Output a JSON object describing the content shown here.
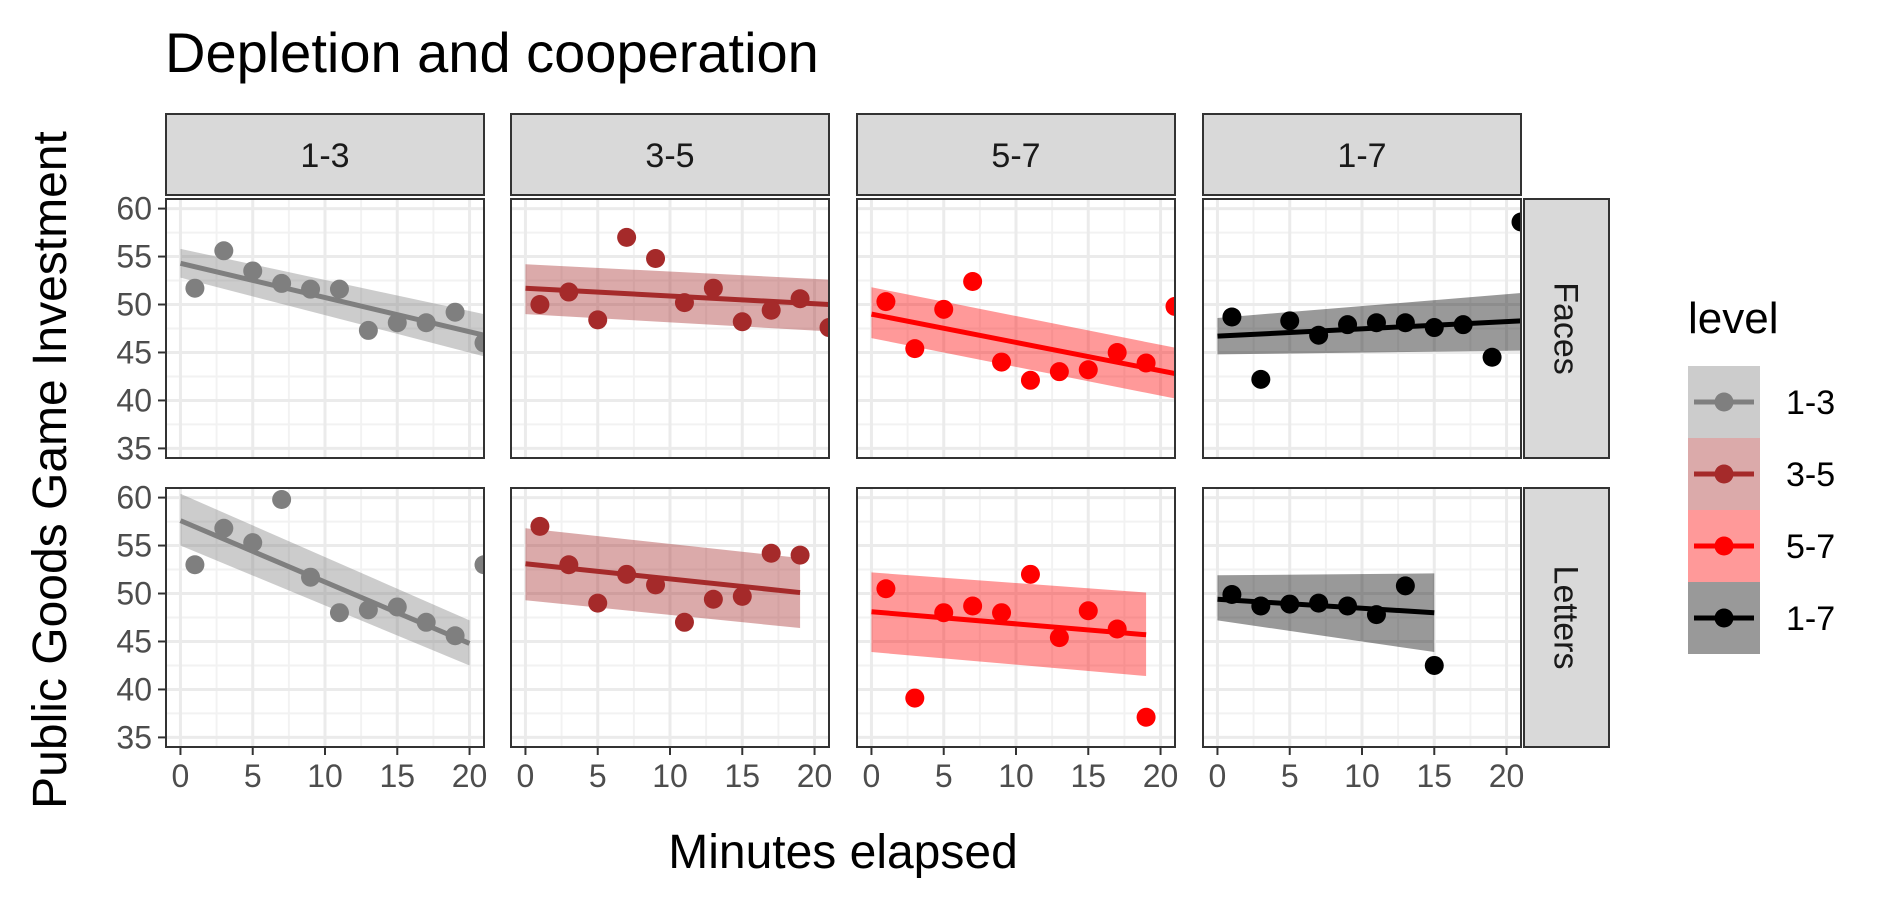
{
  "chart_data": {
    "type": "scatter",
    "title": "Depletion and cooperation",
    "xlabel": "Minutes elapsed",
    "ylabel": "Public Goods Game Investment",
    "xlim": [
      -1,
      21
    ],
    "ylim": [
      34,
      61
    ],
    "x_ticks": [
      0,
      5,
      10,
      15,
      20
    ],
    "y_ticks": [
      35,
      40,
      45,
      50,
      55,
      60
    ],
    "columns": [
      "1-3",
      "3-5",
      "5-7",
      "1-7"
    ],
    "rows": [
      "Faces",
      "Letters"
    ],
    "grid": true,
    "legend": {
      "title": "level",
      "position": "right",
      "entries": [
        {
          "label": "1-3",
          "color": "#7f7f7f"
        },
        {
          "label": "3-5",
          "color": "#a52a2a"
        },
        {
          "label": "5-7",
          "color": "#ff0000"
        },
        {
          "label": "1-7",
          "color": "#000000"
        }
      ]
    },
    "panels": [
      {
        "row": "Faces",
        "column": "1-3",
        "color": "#7f7f7f",
        "points": [
          [
            1,
            51.7
          ],
          [
            3,
            55.6
          ],
          [
            5,
            53.5
          ],
          [
            7,
            52.2
          ],
          [
            9,
            51.6
          ],
          [
            11,
            51.6
          ],
          [
            13,
            47.3
          ],
          [
            15,
            48.1
          ],
          [
            17,
            48.1
          ],
          [
            19,
            49.2
          ],
          [
            21,
            46.0
          ]
        ],
        "fit": {
          "x": [
            0,
            21
          ],
          "y": [
            54.3,
            46.8
          ],
          "band_start": [
            52.8,
            55.8
          ],
          "band_end": [
            44.6,
            49.0
          ]
        }
      },
      {
        "row": "Faces",
        "column": "3-5",
        "color": "#a52a2a",
        "points": [
          [
            1,
            50.0
          ],
          [
            3,
            51.3
          ],
          [
            5,
            48.4
          ],
          [
            7,
            57.0
          ],
          [
            9,
            54.8
          ],
          [
            11,
            50.2
          ],
          [
            13,
            51.7
          ],
          [
            15,
            48.2
          ],
          [
            17,
            49.4
          ],
          [
            19,
            50.6
          ],
          [
            21,
            47.6
          ]
        ],
        "fit": {
          "x": [
            0,
            21
          ],
          "y": [
            51.7,
            50.0
          ],
          "band_start": [
            49.0,
            54.2
          ],
          "band_end": [
            47.2,
            52.6
          ]
        }
      },
      {
        "row": "Faces",
        "column": "5-7",
        "color": "#ff0000",
        "points": [
          [
            1,
            50.3
          ],
          [
            3,
            45.4
          ],
          [
            5,
            49.5
          ],
          [
            7,
            52.4
          ],
          [
            9,
            44.0
          ],
          [
            11,
            42.1
          ],
          [
            13,
            43.0
          ],
          [
            15,
            43.2
          ],
          [
            17,
            45.0
          ],
          [
            19,
            43.9
          ],
          [
            21,
            49.8
          ]
        ],
        "fit": {
          "x": [
            0,
            21
          ],
          "y": [
            49.0,
            42.8
          ],
          "band_start": [
            46.5,
            51.8
          ],
          "band_end": [
            40.2,
            45.5
          ]
        }
      },
      {
        "row": "Faces",
        "column": "1-7",
        "color": "#000000",
        "points": [
          [
            1,
            48.7
          ],
          [
            3,
            42.2
          ],
          [
            5,
            48.3
          ],
          [
            7,
            46.8
          ],
          [
            9,
            47.9
          ],
          [
            11,
            48.1
          ],
          [
            13,
            48.1
          ],
          [
            15,
            47.6
          ],
          [
            17,
            47.9
          ],
          [
            19,
            44.5
          ],
          [
            21,
            58.6
          ]
        ],
        "fit": {
          "x": [
            0,
            21
          ],
          "y": [
            46.7,
            48.3
          ],
          "band_start": [
            44.8,
            48.6
          ],
          "band_end": [
            45.2,
            51.2
          ]
        }
      },
      {
        "row": "Letters",
        "column": "1-3",
        "color": "#7f7f7f",
        "points": [
          [
            1,
            53.0
          ],
          [
            3,
            56.8
          ],
          [
            5,
            55.3
          ],
          [
            7,
            59.8
          ],
          [
            9,
            51.7
          ],
          [
            11,
            48.0
          ],
          [
            13,
            48.3
          ],
          [
            15,
            48.6
          ],
          [
            17,
            47.0
          ],
          [
            19,
            45.6
          ],
          [
            21,
            53.0
          ]
        ],
        "fit": {
          "x": [
            0,
            20
          ],
          "y": [
            57.6,
            44.8
          ],
          "band_start": [
            55.0,
            60.4
          ],
          "band_end": [
            42.5,
            47.2
          ]
        }
      },
      {
        "row": "Letters",
        "column": "3-5",
        "color": "#a52a2a",
        "points": [
          [
            1,
            57.0
          ],
          [
            3,
            53.0
          ],
          [
            5,
            49.0
          ],
          [
            7,
            52.0
          ],
          [
            9,
            50.9
          ],
          [
            11,
            47.0
          ],
          [
            13,
            49.4
          ],
          [
            15,
            49.7
          ],
          [
            17,
            54.2
          ],
          [
            19,
            54.0
          ]
        ],
        "fit": {
          "x": [
            0,
            19
          ],
          "y": [
            53.1,
            50.1
          ],
          "band_start": [
            49.3,
            56.8
          ],
          "band_end": [
            46.4,
            53.7
          ]
        }
      },
      {
        "row": "Letters",
        "column": "5-7",
        "color": "#ff0000",
        "points": [
          [
            1,
            50.5
          ],
          [
            3,
            39.1
          ],
          [
            5,
            48.0
          ],
          [
            7,
            48.7
          ],
          [
            9,
            48.0
          ],
          [
            11,
            52.0
          ],
          [
            13,
            45.4
          ],
          [
            15,
            48.2
          ],
          [
            17,
            46.3
          ],
          [
            19,
            37.1
          ]
        ],
        "fit": {
          "x": [
            0,
            19
          ],
          "y": [
            48.1,
            45.7
          ],
          "band_start": [
            43.9,
            52.2
          ],
          "band_end": [
            41.4,
            50.1
          ]
        }
      },
      {
        "row": "Letters",
        "column": "1-7",
        "color": "#000000",
        "points": [
          [
            1,
            49.9
          ],
          [
            3,
            48.7
          ],
          [
            5,
            48.9
          ],
          [
            7,
            49.0
          ],
          [
            9,
            48.7
          ],
          [
            11,
            47.8
          ],
          [
            13,
            50.8
          ],
          [
            15,
            42.5
          ]
        ],
        "fit": {
          "x": [
            0,
            15
          ],
          "y": [
            49.4,
            48.0
          ],
          "band_start": [
            47.2,
            51.9
          ],
          "band_end": [
            43.9,
            52.1
          ]
        }
      }
    ]
  }
}
